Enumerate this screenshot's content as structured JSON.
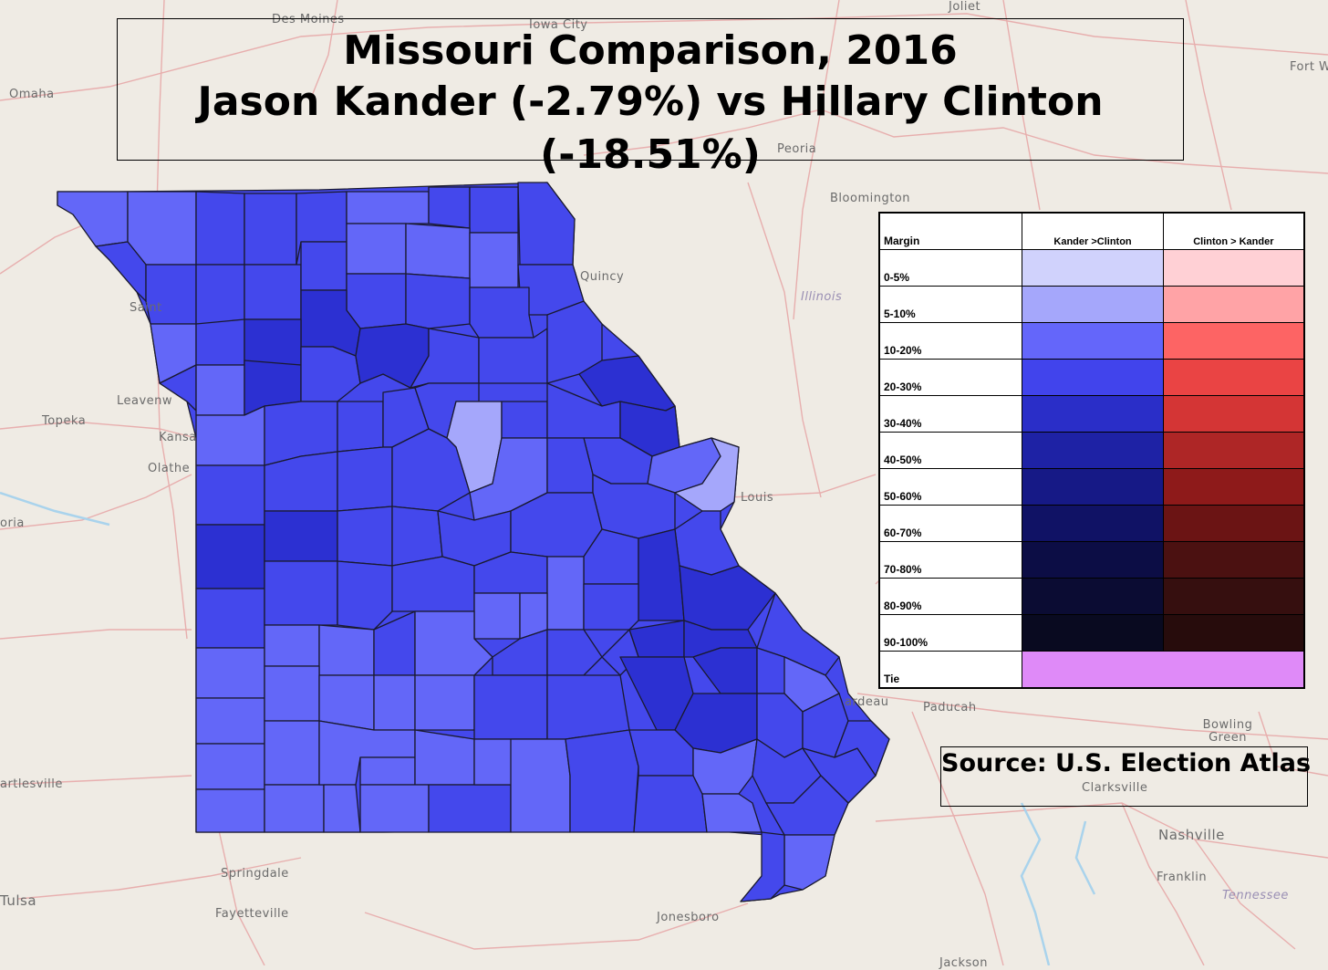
{
  "title": {
    "line1": "Missouri Comparison, 2016",
    "line2": "Jason Kander (-2.79%) vs  Hillary Clinton (-18.51%)"
  },
  "source": "Source: U.S. Election Atlas",
  "basemap_labels": [
    "Des Moines",
    "Iowa City",
    "Joliet",
    "Omaha",
    "Fort W",
    "Peoria",
    "Bloomington",
    "Illinois",
    "Quincy",
    "Saint",
    "Leavenw",
    "Topeka",
    "Kansa",
    "Olathe",
    "oria",
    "Louis",
    "Paducah",
    "Bowling Green",
    "Clarksville",
    "Nashville",
    "Franklin",
    "Tennessee",
    "Springdale",
    "Fayetteville",
    "Tulsa",
    "artlesville",
    "Jonesboro",
    "ardeau",
    "Jackson"
  ],
  "legend": {
    "header_margin": "Margin",
    "header_kander": "Kander >Clinton",
    "header_clinton": "Clinton > Kander",
    "rows": [
      {
        "label": "0-5%",
        "blue": "#d0d2fc",
        "red": "#ffd0d5"
      },
      {
        "label": "5-10%",
        "blue": "#a5a7fb",
        "red": "#ffa3a6"
      },
      {
        "label": "10-20%",
        "blue": "#6466fa",
        "red": "#fd6464"
      },
      {
        "label": "20-30%",
        "blue": "#4144ec",
        "red": "#ea4444"
      },
      {
        "label": "30-40%",
        "blue": "#2a2ec8",
        "red": "#d43535"
      },
      {
        "label": "40-50%",
        "blue": "#1e22a5",
        "red": "#ae2626"
      },
      {
        "label": "50-60%",
        "blue": "#161986",
        "red": "#8e1a1a"
      },
      {
        "label": "60-70%",
        "blue": "#101265",
        "red": "#6b1414"
      },
      {
        "label": "70-80%",
        "blue": "#0c0d45",
        "red": "#4b1111"
      },
      {
        "label": "80-90%",
        "blue": "#0b0c33",
        "red": "#360f0f"
      },
      {
        "label": "90-100%",
        "blue": "#090a20",
        "red": "#270c0c"
      }
    ],
    "tie_label": "Tie",
    "tie_color": "#df8af8"
  },
  "colors": {
    "background": "#efebe4",
    "county_border": "#1a1a2e",
    "road": "#e7a8a8",
    "water": "#a9d3ec"
  }
}
